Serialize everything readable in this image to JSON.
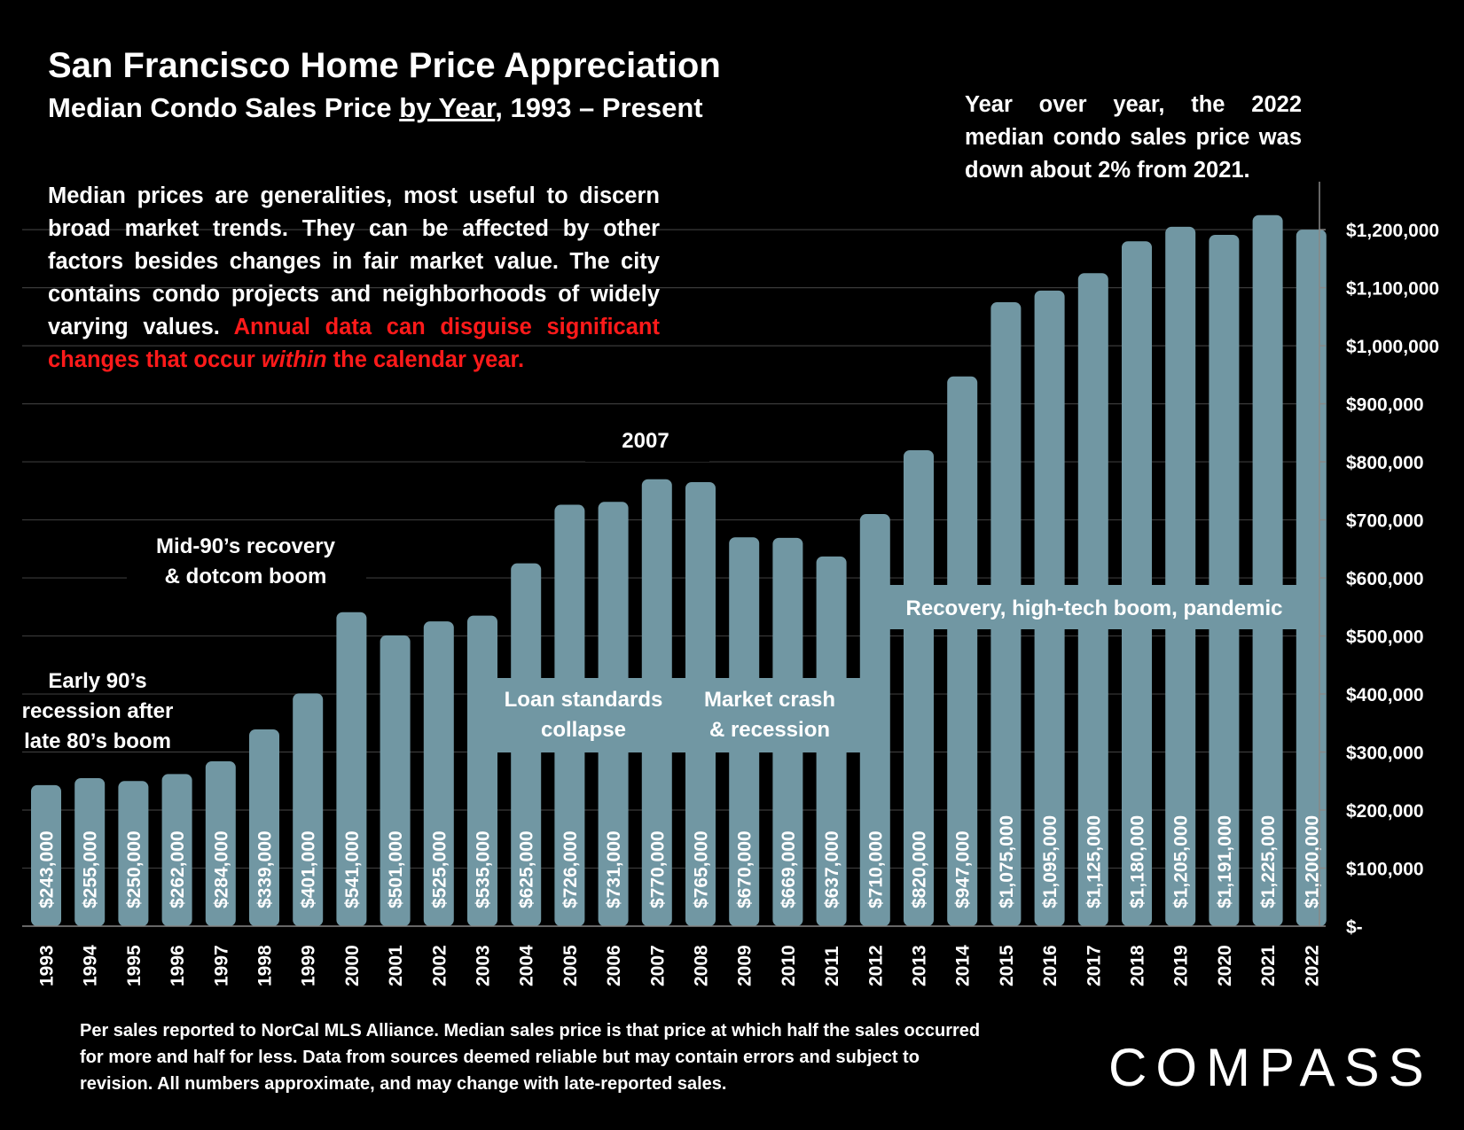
{
  "header": {
    "title": "San Francisco Home Price Appreciation",
    "subtitle_prefix": "Median Condo Sales Price ",
    "subtitle_underlined": "by Year",
    "subtitle_suffix": ", 1993 – Present"
  },
  "intro": {
    "text_white": "Median prices are generalities, most useful to discern broad market trends. They can be affected by other factors besides changes in fair market value. The city contains condo projects and neighborhoods of widely varying values. ",
    "text_red_1": "Annual data can disguise significant changes that occur ",
    "text_red_italic": "within",
    "text_red_2": " the calendar year."
  },
  "callout": "Year over year, the 2022 median condo sales price was down about 2% from 2021.",
  "footnote": "Per sales reported to NorCal MLS Alliance. Median sales price is that price at which half the sales occurred for more and half for less. Data from sources deemed reliable but may contain errors and subject to revision. All numbers approximate, and may change with late-reported sales.",
  "logo": "COMPASS",
  "colors": {
    "background": "#000000",
    "bar": "#7197a3",
    "text": "#ffffff",
    "highlight": "#ff1a1a",
    "grid": "#3a3a3a"
  },
  "chart_data": {
    "type": "bar",
    "categories": [
      "1993",
      "1994",
      "1995",
      "1996",
      "1997",
      "1998",
      "1999",
      "2000",
      "2001",
      "2002",
      "2003",
      "2004",
      "2005",
      "2006",
      "2007",
      "2008",
      "2009",
      "2010",
      "2011",
      "2012",
      "2013",
      "2014",
      "2015",
      "2016",
      "2017",
      "2018",
      "2019",
      "2020",
      "2021",
      "2022"
    ],
    "values": [
      243000,
      255000,
      250000,
      262000,
      284000,
      339000,
      401000,
      541000,
      501000,
      525000,
      535000,
      625000,
      726000,
      731000,
      770000,
      765000,
      670000,
      669000,
      637000,
      710000,
      820000,
      947000,
      1075000,
      1095000,
      1125000,
      1180000,
      1205000,
      1191000,
      1225000,
      1200000
    ],
    "value_labels": [
      "$243,000",
      "$255,000",
      "$250,000",
      "$262,000",
      "$284,000",
      "$339,000",
      "$401,000",
      "$541,000",
      "$501,000",
      "$525,000",
      "$535,000",
      "$625,000",
      "$726,000",
      "$731,000",
      "$770,000",
      "$765,000",
      "$670,000",
      "$669,000",
      "$637,000",
      "$710,000",
      "$820,000",
      "$947,000",
      "$1,075,000",
      "$1,095,000",
      "$1,125,000",
      "$1,180,000",
      "$1,205,000",
      "$1,191,000",
      "$1,225,000",
      "$1,200,000"
    ],
    "ylim": [
      0,
      1275000
    ],
    "y_ticks": [
      0,
      100000,
      200000,
      300000,
      400000,
      500000,
      600000,
      700000,
      800000,
      900000,
      1000000,
      1100000,
      1200000
    ],
    "y_tick_labels": [
      "$-",
      "$100,000",
      "$200,000",
      "$300,000",
      "$400,000",
      "$500,000",
      "$600,000",
      "$700,000",
      "$800,000",
      "$900,000",
      "$1,000,000",
      "$1,100,000",
      "$1,200,000"
    ],
    "y_axis_side": "right",
    "grid": true,
    "annotations": [
      {
        "id": "early90s",
        "lines": [
          "Early 90’s",
          "recession after",
          "late 80’s boom"
        ]
      },
      {
        "id": "mid90s",
        "lines": [
          "Mid-90’s recovery",
          "& dotcom boom"
        ]
      },
      {
        "id": "y2007",
        "lines": [
          "2007"
        ]
      },
      {
        "id": "loan",
        "lines": [
          "Loan standards",
          "collapse"
        ]
      },
      {
        "id": "crash",
        "lines": [
          "Market crash",
          "& recession"
        ]
      },
      {
        "id": "recovery",
        "lines": [
          "Recovery, high-tech boom, pandemic"
        ]
      }
    ]
  }
}
